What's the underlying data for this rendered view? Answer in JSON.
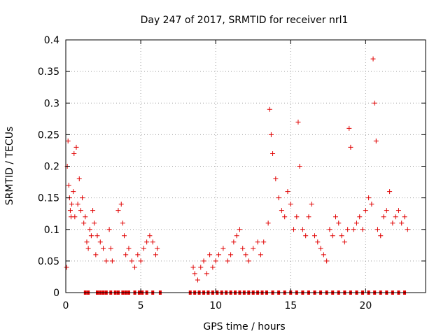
{
  "chart_data": {
    "type": "scatter",
    "title": "Day 247 of 2017, SRMTID for receiver nrl1",
    "xlabel": "GPS time / hours",
    "ylabel": "SRMTID / TECUs",
    "xlim": [
      0,
      24
    ],
    "ylim": [
      0,
      0.4
    ],
    "x_ticks": [
      0,
      5,
      10,
      15,
      20
    ],
    "x_tick_labels": [
      "0",
      "5",
      "10",
      "15",
      "20"
    ],
    "y_ticks": [
      0,
      0.05,
      0.1,
      0.15,
      0.2,
      0.25,
      0.3,
      0.35,
      0.4
    ],
    "y_tick_labels": [
      "0",
      "0.05",
      "0.1",
      "0.15",
      "0.2",
      "0.25",
      "0.3",
      "0.35",
      "0.4"
    ],
    "grid": true,
    "marker": "+",
    "color": "#e00000",
    "series": [
      {
        "name": "SRMTID",
        "x": [
          0.05,
          0.1,
          0.15,
          0.2,
          0.25,
          0.3,
          0.35,
          0.4,
          0.5,
          0.55,
          0.6,
          0.7,
          0.8,
          0.9,
          1.0,
          1.1,
          1.2,
          1.3,
          1.4,
          1.5,
          1.6,
          1.7,
          1.8,
          1.9,
          2.0,
          2.1,
          2.3,
          2.5,
          2.7,
          2.9,
          3.0,
          3.1,
          3.5,
          3.7,
          3.8,
          3.9,
          4.0,
          4.2,
          4.4,
          4.6,
          4.8,
          5.0,
          5.2,
          5.4,
          5.6,
          5.8,
          6.0,
          6.1,
          8.5,
          8.6,
          8.8,
          9.0,
          9.2,
          9.4,
          9.6,
          9.8,
          10.0,
          10.2,
          10.5,
          10.8,
          11.0,
          11.2,
          11.4,
          11.6,
          11.8,
          12.0,
          12.2,
          12.5,
          12.8,
          13.0,
          13.2,
          13.5,
          13.6,
          13.7,
          13.8,
          14.0,
          14.2,
          14.4,
          14.6,
          14.8,
          15.0,
          15.2,
          15.4,
          15.5,
          15.6,
          15.8,
          16.0,
          16.2,
          16.4,
          16.6,
          16.8,
          17.0,
          17.2,
          17.4,
          17.6,
          17.8,
          18.0,
          18.2,
          18.4,
          18.6,
          18.8,
          18.9,
          19.0,
          19.2,
          19.4,
          19.6,
          19.8,
          20.0,
          20.2,
          20.4,
          20.5,
          20.6,
          20.7,
          20.8,
          21.0,
          21.2,
          21.4,
          21.6,
          21.8,
          22.0,
          22.2,
          22.4,
          22.6,
          22.8
        ],
        "y": [
          0.04,
          0.2,
          0.24,
          0.17,
          0.15,
          0.13,
          0.12,
          0.14,
          0.16,
          0.22,
          0.12,
          0.23,
          0.14,
          0.18,
          0.13,
          0.15,
          0.11,
          0.12,
          0.08,
          0.07,
          0.1,
          0.09,
          0.13,
          0.11,
          0.06,
          0.09,
          0.08,
          0.07,
          0.05,
          0.1,
          0.07,
          0.05,
          0.13,
          0.14,
          0.11,
          0.09,
          0.06,
          0.07,
          0.05,
          0.04,
          0.06,
          0.05,
          0.07,
          0.08,
          0.09,
          0.08,
          0.06,
          0.07,
          0.04,
          0.03,
          0.02,
          0.04,
          0.05,
          0.03,
          0.06,
          0.04,
          0.05,
          0.06,
          0.07,
          0.05,
          0.06,
          0.08,
          0.09,
          0.1,
          0.07,
          0.06,
          0.05,
          0.07,
          0.08,
          0.06,
          0.08,
          0.11,
          0.29,
          0.25,
          0.22,
          0.18,
          0.15,
          0.13,
          0.12,
          0.16,
          0.14,
          0.1,
          0.12,
          0.27,
          0.2,
          0.1,
          0.09,
          0.12,
          0.14,
          0.09,
          0.08,
          0.07,
          0.06,
          0.05,
          0.1,
          0.09,
          0.12,
          0.11,
          0.09,
          0.08,
          0.1,
          0.26,
          0.23,
          0.1,
          0.11,
          0.12,
          0.1,
          0.13,
          0.15,
          0.14,
          0.37,
          0.3,
          0.24,
          0.1,
          0.09,
          0.12,
          0.13,
          0.16,
          0.11,
          0.12,
          0.13,
          0.11,
          0.12,
          0.1
        ]
      }
    ],
    "baseline_markers": {
      "description": "filled squares at y=0",
      "x": [
        1.3,
        1.5,
        2.1,
        2.3,
        2.5,
        2.7,
        3.0,
        3.3,
        3.5,
        3.8,
        4.0,
        4.2,
        4.6,
        4.9,
        5.1,
        5.4,
        5.8,
        6.3,
        8.3,
        8.6,
        8.9,
        9.2,
        9.5,
        9.8,
        10.1,
        10.4,
        10.7,
        11.0,
        11.3,
        11.6,
        11.9,
        12.2,
        12.5,
        12.8,
        13.1,
        13.4,
        13.8,
        14.2,
        14.6,
        15.0,
        15.4,
        15.8,
        16.2,
        16.6,
        17.0,
        17.4,
        17.8,
        18.2,
        18.6,
        19.0,
        19.4,
        19.8,
        20.2,
        20.6,
        21.0,
        21.4,
        21.8,
        22.2,
        22.6
      ]
    }
  }
}
